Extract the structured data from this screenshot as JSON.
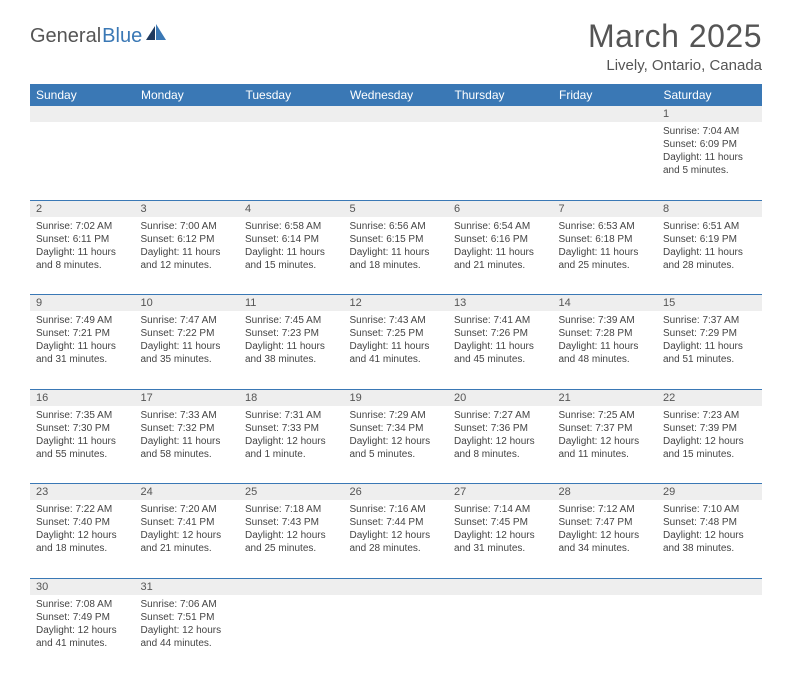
{
  "logo": {
    "word1": "General",
    "word2": "Blue"
  },
  "title": "March 2025",
  "subtitle": "Lively, Ontario, Canada",
  "colors": {
    "header_bg": "#3a78b5",
    "header_text": "#ffffff",
    "daynum_bg": "#eeeeee",
    "border": "#3a78b5",
    "text": "#444444",
    "title_text": "#555555"
  },
  "weekdays": [
    "Sunday",
    "Monday",
    "Tuesday",
    "Wednesday",
    "Thursday",
    "Friday",
    "Saturday"
  ],
  "weeks": [
    {
      "nums": [
        "",
        "",
        "",
        "",
        "",
        "",
        "1"
      ],
      "cells": [
        null,
        null,
        null,
        null,
        null,
        null,
        {
          "sunrise": "Sunrise: 7:04 AM",
          "sunset": "Sunset: 6:09 PM",
          "daylight": "Daylight: 11 hours and 5 minutes."
        }
      ]
    },
    {
      "nums": [
        "2",
        "3",
        "4",
        "5",
        "6",
        "7",
        "8"
      ],
      "cells": [
        {
          "sunrise": "Sunrise: 7:02 AM",
          "sunset": "Sunset: 6:11 PM",
          "daylight": "Daylight: 11 hours and 8 minutes."
        },
        {
          "sunrise": "Sunrise: 7:00 AM",
          "sunset": "Sunset: 6:12 PM",
          "daylight": "Daylight: 11 hours and 12 minutes."
        },
        {
          "sunrise": "Sunrise: 6:58 AM",
          "sunset": "Sunset: 6:14 PM",
          "daylight": "Daylight: 11 hours and 15 minutes."
        },
        {
          "sunrise": "Sunrise: 6:56 AM",
          "sunset": "Sunset: 6:15 PM",
          "daylight": "Daylight: 11 hours and 18 minutes."
        },
        {
          "sunrise": "Sunrise: 6:54 AM",
          "sunset": "Sunset: 6:16 PM",
          "daylight": "Daylight: 11 hours and 21 minutes."
        },
        {
          "sunrise": "Sunrise: 6:53 AM",
          "sunset": "Sunset: 6:18 PM",
          "daylight": "Daylight: 11 hours and 25 minutes."
        },
        {
          "sunrise": "Sunrise: 6:51 AM",
          "sunset": "Sunset: 6:19 PM",
          "daylight": "Daylight: 11 hours and 28 minutes."
        }
      ]
    },
    {
      "nums": [
        "9",
        "10",
        "11",
        "12",
        "13",
        "14",
        "15"
      ],
      "cells": [
        {
          "sunrise": "Sunrise: 7:49 AM",
          "sunset": "Sunset: 7:21 PM",
          "daylight": "Daylight: 11 hours and 31 minutes."
        },
        {
          "sunrise": "Sunrise: 7:47 AM",
          "sunset": "Sunset: 7:22 PM",
          "daylight": "Daylight: 11 hours and 35 minutes."
        },
        {
          "sunrise": "Sunrise: 7:45 AM",
          "sunset": "Sunset: 7:23 PM",
          "daylight": "Daylight: 11 hours and 38 minutes."
        },
        {
          "sunrise": "Sunrise: 7:43 AM",
          "sunset": "Sunset: 7:25 PM",
          "daylight": "Daylight: 11 hours and 41 minutes."
        },
        {
          "sunrise": "Sunrise: 7:41 AM",
          "sunset": "Sunset: 7:26 PM",
          "daylight": "Daylight: 11 hours and 45 minutes."
        },
        {
          "sunrise": "Sunrise: 7:39 AM",
          "sunset": "Sunset: 7:28 PM",
          "daylight": "Daylight: 11 hours and 48 minutes."
        },
        {
          "sunrise": "Sunrise: 7:37 AM",
          "sunset": "Sunset: 7:29 PM",
          "daylight": "Daylight: 11 hours and 51 minutes."
        }
      ]
    },
    {
      "nums": [
        "16",
        "17",
        "18",
        "19",
        "20",
        "21",
        "22"
      ],
      "cells": [
        {
          "sunrise": "Sunrise: 7:35 AM",
          "sunset": "Sunset: 7:30 PM",
          "daylight": "Daylight: 11 hours and 55 minutes."
        },
        {
          "sunrise": "Sunrise: 7:33 AM",
          "sunset": "Sunset: 7:32 PM",
          "daylight": "Daylight: 11 hours and 58 minutes."
        },
        {
          "sunrise": "Sunrise: 7:31 AM",
          "sunset": "Sunset: 7:33 PM",
          "daylight": "Daylight: 12 hours and 1 minute."
        },
        {
          "sunrise": "Sunrise: 7:29 AM",
          "sunset": "Sunset: 7:34 PM",
          "daylight": "Daylight: 12 hours and 5 minutes."
        },
        {
          "sunrise": "Sunrise: 7:27 AM",
          "sunset": "Sunset: 7:36 PM",
          "daylight": "Daylight: 12 hours and 8 minutes."
        },
        {
          "sunrise": "Sunrise: 7:25 AM",
          "sunset": "Sunset: 7:37 PM",
          "daylight": "Daylight: 12 hours and 11 minutes."
        },
        {
          "sunrise": "Sunrise: 7:23 AM",
          "sunset": "Sunset: 7:39 PM",
          "daylight": "Daylight: 12 hours and 15 minutes."
        }
      ]
    },
    {
      "nums": [
        "23",
        "24",
        "25",
        "26",
        "27",
        "28",
        "29"
      ],
      "cells": [
        {
          "sunrise": "Sunrise: 7:22 AM",
          "sunset": "Sunset: 7:40 PM",
          "daylight": "Daylight: 12 hours and 18 minutes."
        },
        {
          "sunrise": "Sunrise: 7:20 AM",
          "sunset": "Sunset: 7:41 PM",
          "daylight": "Daylight: 12 hours and 21 minutes."
        },
        {
          "sunrise": "Sunrise: 7:18 AM",
          "sunset": "Sunset: 7:43 PM",
          "daylight": "Daylight: 12 hours and 25 minutes."
        },
        {
          "sunrise": "Sunrise: 7:16 AM",
          "sunset": "Sunset: 7:44 PM",
          "daylight": "Daylight: 12 hours and 28 minutes."
        },
        {
          "sunrise": "Sunrise: 7:14 AM",
          "sunset": "Sunset: 7:45 PM",
          "daylight": "Daylight: 12 hours and 31 minutes."
        },
        {
          "sunrise": "Sunrise: 7:12 AM",
          "sunset": "Sunset: 7:47 PM",
          "daylight": "Daylight: 12 hours and 34 minutes."
        },
        {
          "sunrise": "Sunrise: 7:10 AM",
          "sunset": "Sunset: 7:48 PM",
          "daylight": "Daylight: 12 hours and 38 minutes."
        }
      ]
    },
    {
      "nums": [
        "30",
        "31",
        "",
        "",
        "",
        "",
        ""
      ],
      "cells": [
        {
          "sunrise": "Sunrise: 7:08 AM",
          "sunset": "Sunset: 7:49 PM",
          "daylight": "Daylight: 12 hours and 41 minutes."
        },
        {
          "sunrise": "Sunrise: 7:06 AM",
          "sunset": "Sunset: 7:51 PM",
          "daylight": "Daylight: 12 hours and 44 minutes."
        },
        null,
        null,
        null,
        null,
        null
      ]
    }
  ]
}
